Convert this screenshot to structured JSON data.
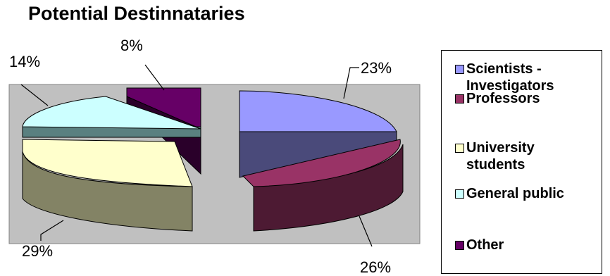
{
  "chart_data": {
    "type": "pie",
    "title": "Potential Destinnataries",
    "categories": [
      "Scientists - Investigators",
      "Professors",
      "University students",
      "General public",
      "Other"
    ],
    "values": [
      23,
      26,
      29,
      14,
      8
    ],
    "value_labels": [
      "23%",
      "26%",
      "29%",
      "14%",
      "8%"
    ],
    "series": [
      {
        "name": "Scientists - Investigators",
        "value": 23,
        "color": "#9999ff"
      },
      {
        "name": "Professors",
        "value": 26,
        "color": "#993366"
      },
      {
        "name": "University students",
        "value": 29,
        "color": "#ffffcc"
      },
      {
        "name": "General public",
        "value": 14,
        "color": "#ccffff"
      },
      {
        "name": "Other",
        "value": 8,
        "color": "#660066"
      }
    ],
    "exploded": true,
    "three_d": true,
    "plot_area_color": "#c0c0c0",
    "legend": {
      "position": "right",
      "items": [
        "Scientists - Investigators",
        "Professors",
        "University students",
        "General public",
        "Other"
      ]
    }
  }
}
